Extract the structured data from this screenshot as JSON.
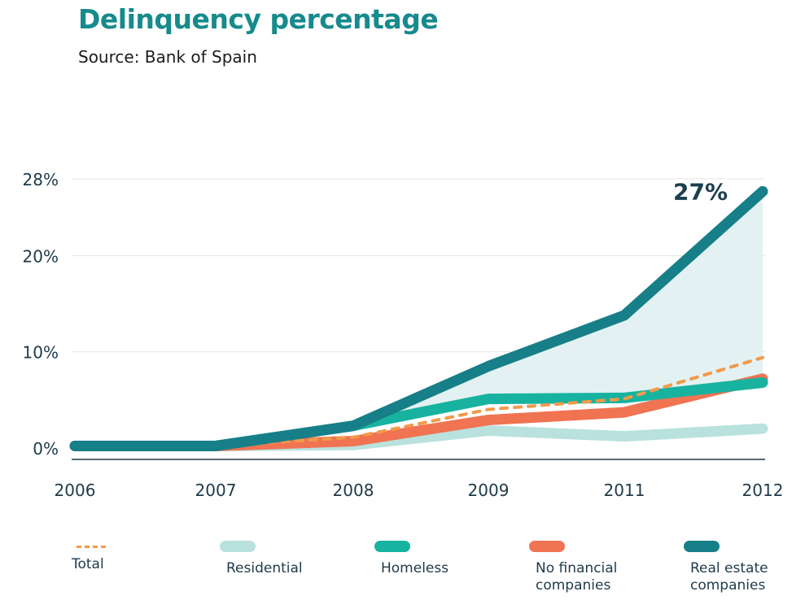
{
  "header": {
    "title": "Delinquency percentage",
    "subtitle": "Source: Bank of Spain"
  },
  "colors": {
    "total": "#f29a4a",
    "residential": "#b9e2de",
    "homeless": "#17b3a0",
    "no_financial": "#f07352",
    "real_estate": "#167f88",
    "area_fill": "#e4f1f2",
    "grid": "#e6e6e6",
    "axis": "#1e3a4a"
  },
  "chart_data": {
    "type": "line",
    "title": "Delinquency percentage",
    "subtitle": "Source: Bank of Spain",
    "categories": [
      "2006",
      "2007",
      "2008",
      "2009",
      "2011",
      "2012"
    ],
    "y_ticks": [
      {
        "value": 0,
        "label": "0%"
      },
      {
        "value": 10,
        "label": "10%"
      },
      {
        "value": 20,
        "label": "20%"
      },
      {
        "value": 28,
        "label": "28%"
      }
    ],
    "ylim": [
      -1.2,
      28
    ],
    "grid": true,
    "legend_position": "bottom",
    "series": [
      {
        "key": "residential",
        "name": "Residential",
        "style": "thick",
        "values": [
          0.2,
          0.2,
          0.3,
          1.8,
          1.2,
          2.0
        ]
      },
      {
        "key": "no_financial",
        "name": "No financial\ncompanies",
        "style": "thick",
        "values": [
          0.2,
          0.2,
          0.7,
          2.9,
          3.7,
          7.2
        ]
      },
      {
        "key": "homeless",
        "name": "Homeless",
        "style": "thick",
        "values": [
          0.2,
          0.2,
          2.3,
          5.1,
          5.2,
          6.8
        ]
      },
      {
        "key": "total",
        "name": "Total",
        "style": "dashed",
        "values": [
          0.2,
          0.2,
          1.1,
          4.0,
          5.1,
          9.4
        ]
      },
      {
        "key": "real_estate",
        "name": "Real estate\ncompanies",
        "style": "thick",
        "values": [
          0.2,
          0.2,
          2.3,
          8.5,
          13.8,
          26.7
        ]
      }
    ],
    "annotation": {
      "label": "27%",
      "series": "real_estate",
      "category": "2012"
    }
  },
  "legend": [
    {
      "key": "total",
      "label": "Total"
    },
    {
      "key": "residential",
      "label": "Residential"
    },
    {
      "key": "homeless",
      "label": "Homeless"
    },
    {
      "key": "no_financial",
      "label": "No financial\ncompanies"
    },
    {
      "key": "real_estate",
      "label": "Real estate\ncompanies"
    }
  ]
}
